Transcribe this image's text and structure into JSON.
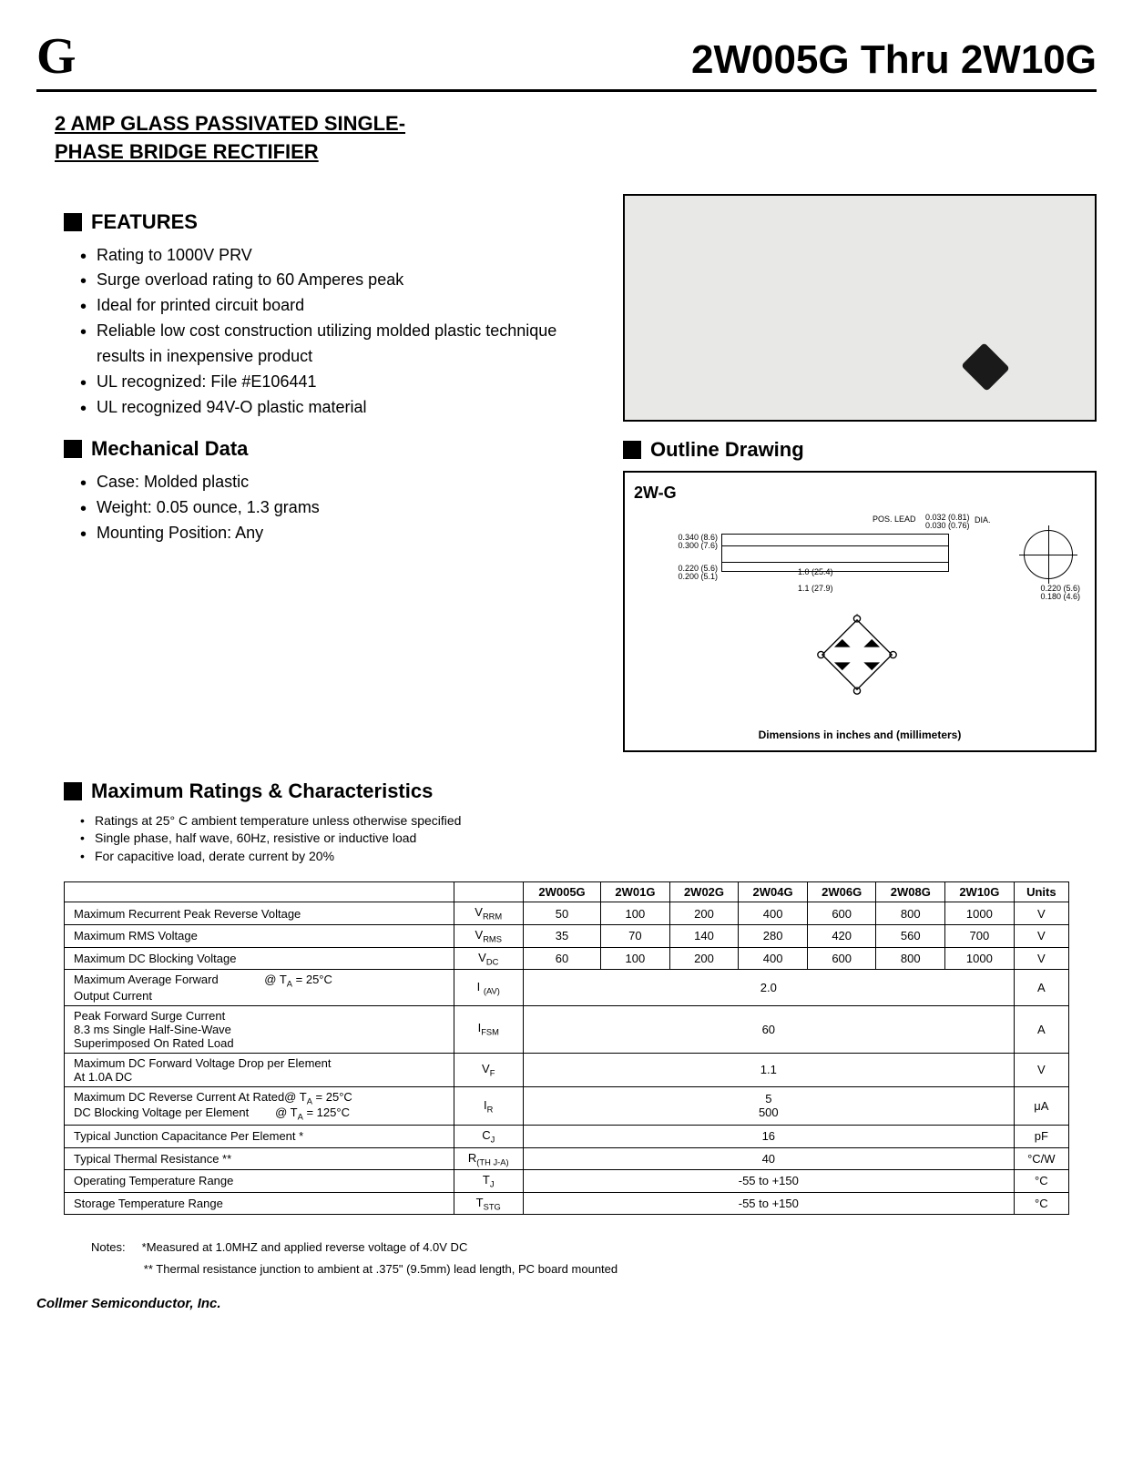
{
  "header": {
    "logo": "G",
    "title": "2W005G Thru 2W10G"
  },
  "subtitle": "2  AMP GLASS PASSIVATED SINGLE-\nPHASE BRIDGE RECTIFIER",
  "features": {
    "heading": "FEATURES",
    "items": [
      "Rating to 1000V PRV",
      "Surge overload rating to 60 Amperes peak",
      "Ideal for printed circuit board",
      "Reliable low cost construction utilizing molded plastic technique results in inexpensive product",
      "UL recognized: File #E106441",
      "UL recognized 94V-O plastic material"
    ]
  },
  "mechanical": {
    "heading": "Mechanical Data",
    "items": [
      "Case: Molded plastic",
      "Weight: 0.05 ounce, 1.3 grams",
      "Mounting Position: Any"
    ]
  },
  "outline": {
    "heading": "Outline Drawing",
    "package_label": "2W-G",
    "pos_lead": "POS. LEAD",
    "dia_dim_top": "0.032 (0.81)",
    "dia_dim_bot": "0.030 (0.76)",
    "dia_suffix": "DIA.",
    "h1_top": "0.340 (8.6)",
    "h1_bot": "0.300 (7.6)",
    "h2_top": "0.220 (5.6)",
    "h2_bot": "0.200 (5.1)",
    "w1": "1.0 (25.4)",
    "w2": "1.1 (27.9)",
    "d_top": "0.220 (5.6)",
    "d_bot": "0.180 (4.6)",
    "caption": "Dimensions in inches and (millimeters)"
  },
  "maxratings": {
    "heading": "Maximum Ratings & Characteristics",
    "notes": [
      "Ratings at 25° C ambient temperature unless otherwise specified",
      "Single phase, half wave, 60Hz, resistive or inductive load",
      "For capacitive load, derate current by 20%"
    ]
  },
  "table": {
    "columns": [
      "",
      "",
      "2W005G",
      "2W01G",
      "2W02G",
      "2W04G",
      "2W06G",
      "2W08G",
      "2W10G",
      "Units"
    ],
    "rows": [
      {
        "param": "Maximum Recurrent Peak Reverse Voltage",
        "symbol_html": "V<sub>RRM</sub>",
        "vals": [
          "50",
          "100",
          "200",
          "400",
          "600",
          "800",
          "1000"
        ],
        "unit": "V"
      },
      {
        "param": "Maximum RMS Voltage",
        "symbol_html": "V<sub>RMS</sub>",
        "vals": [
          "35",
          "70",
          "140",
          "280",
          "420",
          "560",
          "700"
        ],
        "unit": "V"
      },
      {
        "param": "Maximum DC Blocking Voltage",
        "symbol_html": "V<sub>DC</sub>",
        "vals": [
          "60",
          "100",
          "200",
          "400",
          "600",
          "800",
          "1000"
        ],
        "unit": "V"
      },
      {
        "param_html": "Maximum Average Forward &nbsp;&nbsp;&nbsp;&nbsp;&nbsp;&nbsp;&nbsp;&nbsp;&nbsp;&nbsp;&nbsp;&nbsp; @ T<sub>A</sub> = 25°C<br>Output Current",
        "symbol_html": "I <sub>(AV)</sub>",
        "span": "2.0",
        "unit": "A"
      },
      {
        "param": "Peak Forward Surge Current\n8.3 ms Single Half-Sine-Wave\nSuperimposed On Rated Load",
        "symbol_html": "I<sub>FSM</sub>",
        "span": "60",
        "unit": "A"
      },
      {
        "param": "Maximum DC Forward Voltage Drop per Element\nAt 1.0A DC",
        "symbol_html": "V<sub>F</sub>",
        "span": "1.1",
        "unit": "V"
      },
      {
        "param_html": "Maximum DC Reverse Current At Rated@ T<sub>A</sub> = 25°C<br>DC Blocking Voltage per Element &nbsp;&nbsp;&nbsp;&nbsp;&nbsp;&nbsp; @ T<sub>A</sub> = 125°C",
        "symbol_html": "I<sub>R</sub>",
        "span_html": "5<br>500",
        "unit": "μA"
      },
      {
        "param": "Typical Junction Capacitance Per Element *",
        "symbol_html": "C<sub>J</sub>",
        "span": "16",
        "unit": "pF"
      },
      {
        "param": "Typical Thermal Resistance **",
        "symbol_html": "R<sub>(TH J-A)</sub>",
        "span": "40",
        "unit": "°C/W"
      },
      {
        "param": "Operating Temperature Range",
        "symbol_html": "T<sub>J</sub>",
        "span": "-55 to +150",
        "unit": "°C"
      },
      {
        "param": "Storage Temperature Range",
        "symbol_html": "T<sub>STG</sub>",
        "span": "-55 to +150",
        "unit": "°C"
      }
    ]
  },
  "footnotes": {
    "label": "Notes:",
    "n1": "*Measured at 1.0MHZ and applied reverse voltage of 4.0V DC",
    "n2": "** Thermal resistance junction to ambient at .375\" (9.5mm) lead length, PC board mounted"
  },
  "company": "Collmer Semiconductor, Inc.",
  "colors": {
    "text": "#000000",
    "bg": "#ffffff",
    "photo_bg": "#e8e8e6",
    "component": "#1a1a1a"
  }
}
